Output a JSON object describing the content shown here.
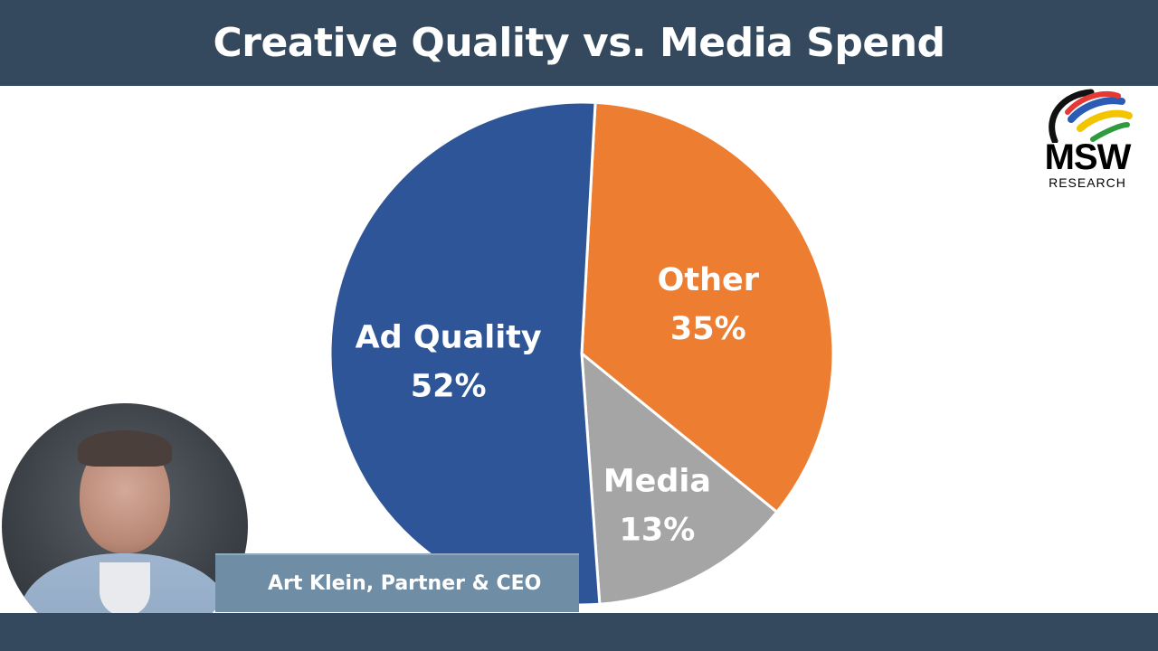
{
  "header": {
    "title": "Creative Quality vs. Media Spend"
  },
  "logo": {
    "main": "MSW",
    "sub": "RESEARCH"
  },
  "presenter": {
    "name": "Art Klein, Partner & CEO"
  },
  "colors": {
    "header_bg": "#34495e",
    "ad_quality": "#2e5597",
    "other": "#ed7d31",
    "media": "#a5a5a5"
  },
  "chart_data": {
    "type": "pie",
    "title": "",
    "slices": [
      {
        "label": "Ad Quality",
        "value": 52,
        "display": "52%",
        "color": "#2e5597"
      },
      {
        "label": "Other",
        "value": 35,
        "display": "35%",
        "color": "#ed7d31"
      },
      {
        "label": "Media",
        "value": 13,
        "display": "13%",
        "color": "#a5a5a5"
      }
    ]
  }
}
